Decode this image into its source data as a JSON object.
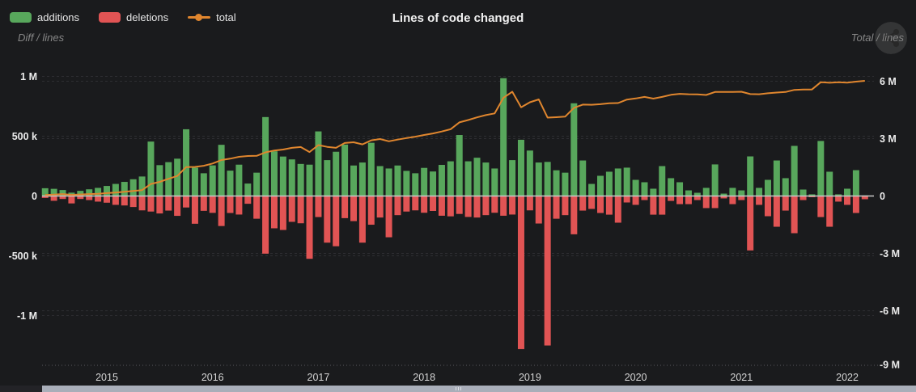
{
  "header": {
    "title": "Lines of code changed"
  },
  "legend": {
    "additions": "additions",
    "deletions": "deletions",
    "total": "total"
  },
  "axes": {
    "left_title": "Diff / lines",
    "right_title": "Total / lines",
    "left_ticks": [
      {
        "v": 1000000,
        "label": "1 M"
      },
      {
        "v": 500000,
        "label": "500 k"
      },
      {
        "v": 0,
        "label": "0"
      },
      {
        "v": -500000,
        "label": "-500 k"
      },
      {
        "v": -1000000,
        "label": "-1 M"
      }
    ],
    "right_ticks": [
      {
        "v": 6000000,
        "label": "6 M"
      },
      {
        "v": 3000000,
        "label": "3 M"
      },
      {
        "v": 0,
        "label": "0"
      },
      {
        "v": -3000000,
        "label": "-3 M"
      },
      {
        "v": -6000000,
        "label": "-6 M"
      },
      {
        "v": -9000000,
        "label": "-9 M"
      }
    ],
    "years": [
      "2015",
      "2016",
      "2017",
      "2018",
      "2019",
      "2020",
      "2021",
      "2022"
    ]
  },
  "colors": {
    "background": "#1a1b1d",
    "additions": "#58a75c",
    "deletions": "#e15454",
    "total": "#e0862e",
    "grid": "#2e2e32",
    "zero_line": "#c9c9c9",
    "axis_line": "#5a5a5e",
    "tick_text": "#ececec",
    "year_text": "#d6d6d6",
    "scrollbar_thumb": "#a9aeb9"
  },
  "chart_data": {
    "type": "bar",
    "subtype": "bar+line (monthly diff bars with cumulative total line)",
    "title": "Lines of code changed",
    "left_axis_label": "Diff / lines",
    "right_axis_label": "Total / lines",
    "left_ylim": [
      -1400000,
      1150000
    ],
    "right_ylim": [
      -8900000,
      7100000
    ],
    "grid": "dashed",
    "legend_position": "top-left",
    "x": [
      "2014-06",
      "2014-07",
      "2014-08",
      "2014-09",
      "2014-10",
      "2014-11",
      "2014-12",
      "2015-01",
      "2015-02",
      "2015-03",
      "2015-04",
      "2015-05",
      "2015-06",
      "2015-07",
      "2015-08",
      "2015-09",
      "2015-10",
      "2015-11",
      "2015-12",
      "2016-01",
      "2016-02",
      "2016-03",
      "2016-04",
      "2016-05",
      "2016-06",
      "2016-07",
      "2016-08",
      "2016-09",
      "2016-10",
      "2016-11",
      "2016-12",
      "2017-01",
      "2017-02",
      "2017-03",
      "2017-04",
      "2017-05",
      "2017-06",
      "2017-07",
      "2017-08",
      "2017-09",
      "2017-10",
      "2017-11",
      "2017-12",
      "2018-01",
      "2018-02",
      "2018-03",
      "2018-04",
      "2018-05",
      "2018-06",
      "2018-07",
      "2018-08",
      "2018-09",
      "2018-10",
      "2018-11",
      "2018-12",
      "2019-01",
      "2019-02",
      "2019-03",
      "2019-04",
      "2019-05",
      "2019-06",
      "2019-07",
      "2019-08",
      "2019-09",
      "2019-10",
      "2019-11",
      "2019-12",
      "2020-01",
      "2020-02",
      "2020-03",
      "2020-04",
      "2020-05",
      "2020-06",
      "2020-07",
      "2020-08",
      "2020-09",
      "2020-10",
      "2020-11",
      "2020-12",
      "2021-01",
      "2021-02",
      "2021-03",
      "2021-04",
      "2021-05",
      "2021-06",
      "2021-07",
      "2021-08",
      "2021-09",
      "2021-10",
      "2021-11",
      "2021-12",
      "2022-01",
      "2022-02",
      "2022-03"
    ],
    "series": [
      {
        "name": "additions",
        "type": "column",
        "axis": "left",
        "color": "#58a75c",
        "values": [
          65000,
          60000,
          50000,
          28000,
          43000,
          56000,
          68000,
          84000,
          101000,
          118000,
          140000,
          163000,
          455000,
          258000,
          283000,
          312000,
          558000,
          237000,
          190000,
          256000,
          428000,
          212000,
          262000,
          104000,
          195000,
          660000,
          374000,
          330000,
          306000,
          268000,
          262000,
          540000,
          300000,
          370000,
          430000,
          255000,
          280000,
          445000,
          250000,
          230000,
          255000,
          210000,
          190000,
          235000,
          205000,
          260000,
          290000,
          510000,
          290000,
          320000,
          280000,
          230000,
          985000,
          300000,
          470000,
          380000,
          280000,
          285000,
          215000,
          195000,
          775000,
          297000,
          101000,
          169000,
          203000,
          230000,
          237000,
          135000,
          115000,
          61000,
          250000,
          149000,
          115000,
          47000,
          27000,
          68000,
          264000,
          20000,
          68000,
          47000,
          331000,
          68000,
          135000,
          297000,
          149000,
          419000,
          54000,
          14000,
          460000,
          203000,
          14000,
          61000,
          216000,
          5000
        ]
      },
      {
        "name": "deletions",
        "type": "column",
        "axis": "left",
        "color": "#e15454",
        "values": [
          -16000,
          -40000,
          -25000,
          -62000,
          -25000,
          -34000,
          -47000,
          -56000,
          -74000,
          -79000,
          -92000,
          -120000,
          -130000,
          -146000,
          -122000,
          -166000,
          -96000,
          -232000,
          -124000,
          -141000,
          -251000,
          -142000,
          -155000,
          -65000,
          -190000,
          -482000,
          -270000,
          -284000,
          -216000,
          -228000,
          -525000,
          -176000,
          -390000,
          -420000,
          -185000,
          -210000,
          -390000,
          -240000,
          -180000,
          -345000,
          -160000,
          -130000,
          -120000,
          -140000,
          -125000,
          -165000,
          -170000,
          -150000,
          -175000,
          -180000,
          -160000,
          -140000,
          -165000,
          -155000,
          -1280000,
          -120000,
          -230000,
          -1250000,
          -190000,
          -160000,
          -320000,
          -122000,
          -108000,
          -142000,
          -156000,
          -223000,
          -54000,
          -74000,
          -34000,
          -156000,
          -156000,
          -41000,
          -68000,
          -68000,
          -34000,
          -101000,
          -101000,
          -20000,
          -68000,
          -34000,
          -455000,
          -74000,
          -169000,
          -257000,
          -122000,
          -311000,
          -34000,
          -10000,
          -176000,
          -257000,
          -47000,
          -74000,
          -142000,
          -27000
        ]
      },
      {
        "name": "total",
        "type": "line",
        "axis": "right",
        "color": "#e0862e",
        "values": [
          50000,
          70000,
          100000,
          60000,
          80000,
          100000,
          120000,
          150000,
          180000,
          220000,
          260000,
          310000,
          630000,
          740000,
          900000,
          1050000,
          1510000,
          1520000,
          1580000,
          1700000,
          1880000,
          1950000,
          2050000,
          2090000,
          2100000,
          2280000,
          2380000,
          2430000,
          2520000,
          2560000,
          2300000,
          2660000,
          2570000,
          2520000,
          2770000,
          2810000,
          2700000,
          2910000,
          2980000,
          2860000,
          2950000,
          3030000,
          3100000,
          3190000,
          3270000,
          3370000,
          3490000,
          3850000,
          3970000,
          4110000,
          4230000,
          4320000,
          5140000,
          5450000,
          4640000,
          4900000,
          5050000,
          4100000,
          4120000,
          4150000,
          4610000,
          4780000,
          4770000,
          4800000,
          4850000,
          4860000,
          5040000,
          5100000,
          5180000,
          5090000,
          5180000,
          5290000,
          5340000,
          5320000,
          5310000,
          5280000,
          5440000,
          5440000,
          5440000,
          5450000,
          5330000,
          5320000,
          5370000,
          5410000,
          5440000,
          5550000,
          5570000,
          5570000,
          5950000,
          5920000,
          5950000,
          5930000,
          5980000,
          6020000
        ]
      }
    ]
  }
}
